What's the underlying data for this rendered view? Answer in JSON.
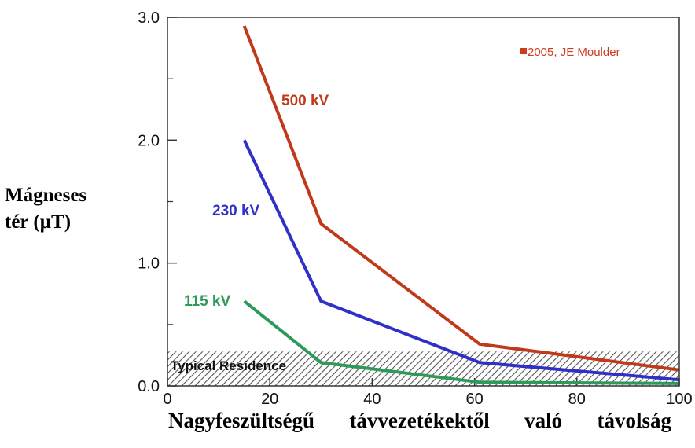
{
  "chart_data": {
    "type": "line",
    "xlabel": "Nagyfeszültségű távvezetékektől való távolság",
    "ylabel_line1": "Mágneses",
    "ylabel_line2": "tér (µT)",
    "xlim": [
      0,
      100
    ],
    "ylim": [
      0,
      3.0
    ],
    "x_ticks": [
      "0",
      "20",
      "40",
      "60",
      "80",
      "100"
    ],
    "y_ticks": [
      "0.0",
      "1.0",
      "2.0",
      "3.0"
    ],
    "series": [
      {
        "name": "500 kV",
        "color": "#c0391b",
        "x": [
          15,
          30,
          61,
          100
        ],
        "y": [
          2.93,
          1.32,
          0.34,
          0.13
        ]
      },
      {
        "name": "230 kV",
        "color": "#3030c8",
        "x": [
          15,
          30,
          61,
          100
        ],
        "y": [
          2.0,
          0.69,
          0.19,
          0.05
        ]
      },
      {
        "name": "115 kV",
        "color": "#2e9a5a",
        "x": [
          15,
          30,
          61,
          100
        ],
        "y": [
          0.69,
          0.19,
          0.03,
          0.02
        ]
      }
    ],
    "band": {
      "label": "Typical Residence",
      "y_range": [
        0,
        0.28
      ]
    },
    "annotation": {
      "text": "2005, JE Moulder",
      "color": "#d03a1e"
    }
  }
}
